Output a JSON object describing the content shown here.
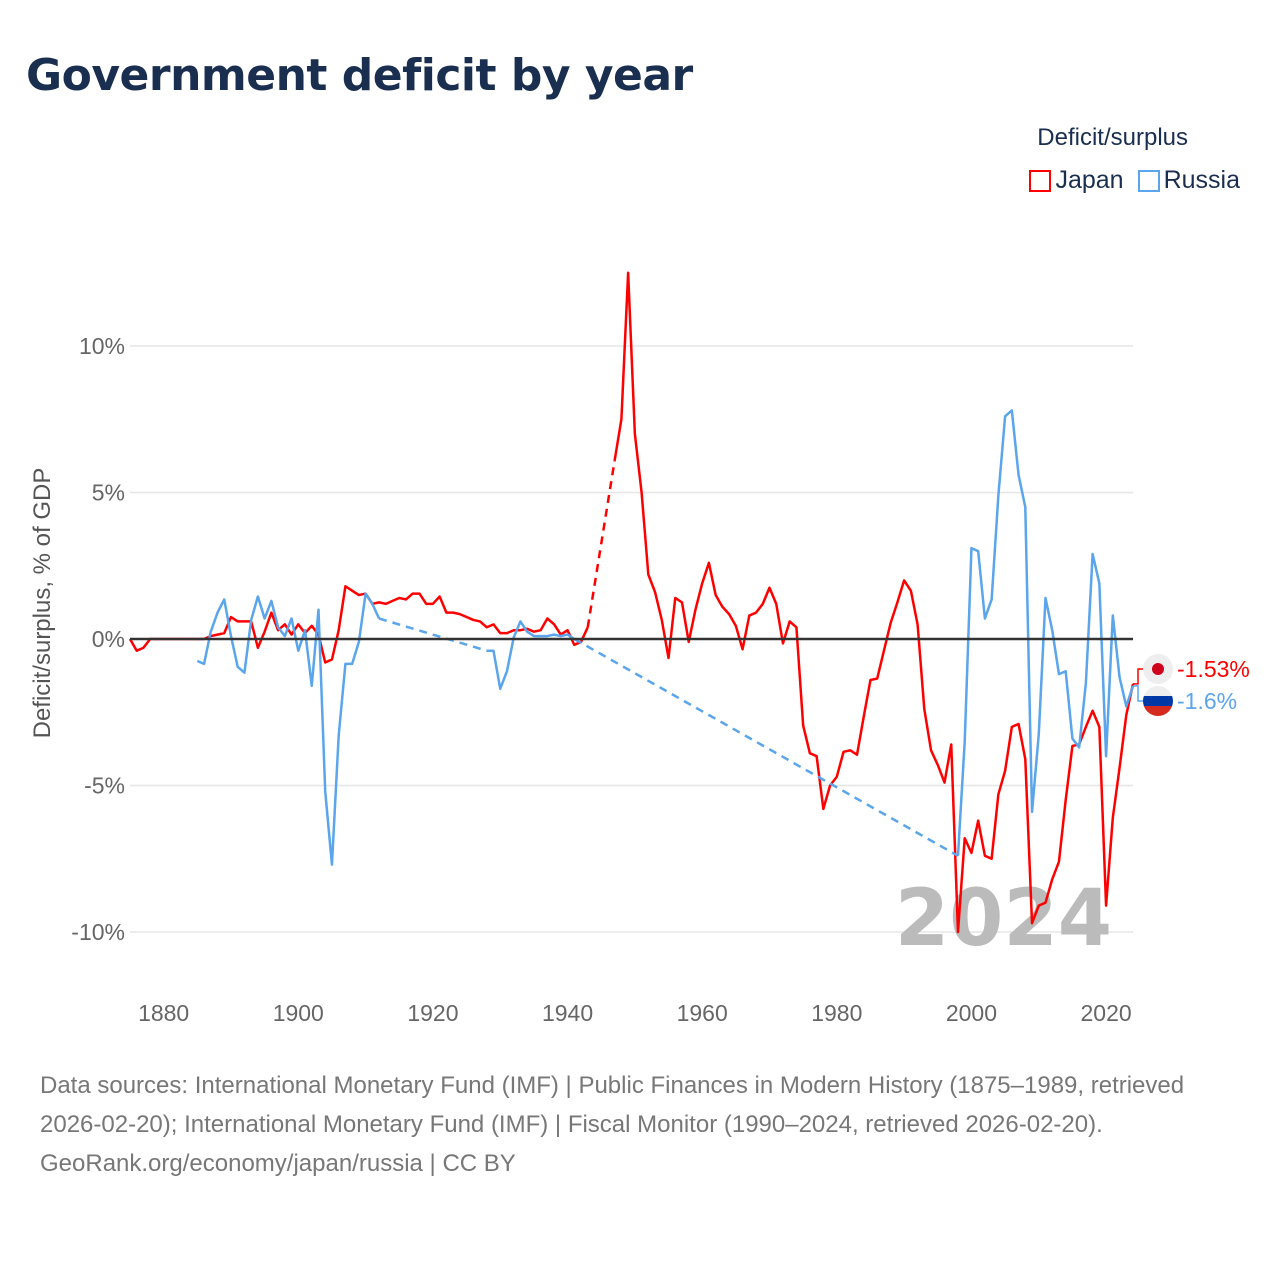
{
  "title": "Government deficit by year",
  "legend": {
    "title": "Deficit/surplus",
    "items": [
      {
        "label": "Japan",
        "color": "#ff0000"
      },
      {
        "label": "Russia",
        "color": "#5aa5eb"
      }
    ]
  },
  "footer": {
    "sources": "Data sources: International Monetary Fund (IMF) | Public Finances in Modern History (1875–1989, retrieved 2026-02-20); International Monetary Fund (IMF) | Fiscal Monitor (1990–2024, retrieved 2026-02-20).",
    "credit": "GeoRank.org/economy/japan/russia | CC BY"
  },
  "chart_data": {
    "type": "line",
    "title": "Government deficit by year",
    "xlabel": "",
    "ylabel": "Deficit/surplus, % of GDP",
    "xlim": [
      1875,
      2024
    ],
    "ylim": [
      -12,
      14
    ],
    "xticks": [
      {
        "v": 1880,
        "label": "1880"
      },
      {
        "v": 1900,
        "label": "1900"
      },
      {
        "v": 1920,
        "label": "1920"
      },
      {
        "v": 1940,
        "label": "1940"
      },
      {
        "v": 1960,
        "label": "1960"
      },
      {
        "v": 1980,
        "label": "1980"
      },
      {
        "v": 2000,
        "label": "2000"
      },
      {
        "v": 2020,
        "label": "2020"
      }
    ],
    "yticks": [
      {
        "v": 10,
        "label": "10%"
      },
      {
        "v": 5,
        "label": "5%"
      },
      {
        "v": 0,
        "label": "0%"
      },
      {
        "v": -5,
        "label": "-5%"
      },
      {
        "v": -10,
        "label": "-10%"
      }
    ],
    "current_year": "2024",
    "series": [
      {
        "name": "Japan",
        "color": "#ff0000",
        "end_label": "-1.53%",
        "x": [
          1875,
          1876,
          1877,
          1878,
          1879,
          1880,
          1881,
          1882,
          1883,
          1884,
          1885,
          1886,
          1887,
          1888,
          1889,
          1890,
          1891,
          1892,
          1893,
          1894,
          1895,
          1896,
          1897,
          1898,
          1899,
          1900,
          1901,
          1902,
          1903,
          1904,
          1905,
          1906,
          1907,
          1908,
          1909,
          1910,
          1911,
          1912,
          1913,
          1914,
          1915,
          1916,
          1917,
          1918,
          1919,
          1920,
          1921,
          1922,
          1923,
          1924,
          1925,
          1926,
          1927,
          1928,
          1929,
          1930,
          1931,
          1932,
          1933,
          1934,
          1935,
          1936,
          1937,
          1938,
          1939,
          1940,
          1941,
          1942,
          1943,
          1947,
          1948,
          1949,
          1950,
          1951,
          1952,
          1953,
          1954,
          1955,
          1956,
          1957,
          1958,
          1959,
          1960,
          1961,
          1962,
          1963,
          1964,
          1965,
          1966,
          1967,
          1968,
          1969,
          1970,
          1971,
          1972,
          1973,
          1974,
          1975,
          1976,
          1977,
          1978,
          1979,
          1980,
          1981,
          1982,
          1983,
          1984,
          1985,
          1986,
          1987,
          1988,
          1989,
          1990,
          1991,
          1992,
          1993,
          1994,
          1995,
          1996,
          1997,
          1998,
          1999,
          2000,
          2001,
          2002,
          2003,
          2004,
          2005,
          2006,
          2007,
          2008,
          2009,
          2010,
          2011,
          2012,
          2013,
          2014,
          2015,
          2016,
          2017,
          2018,
          2019,
          2020,
          2021,
          2022,
          2023,
          2024
        ],
        "y": [
          0,
          -0.4,
          -0.3,
          0,
          0,
          0,
          0,
          0,
          0,
          0,
          0,
          0,
          0.1,
          0.15,
          0.2,
          0.75,
          0.6,
          0.6,
          0.6,
          -0.3,
          0.25,
          0.9,
          0.3,
          0.5,
          0.15,
          0.5,
          0.2,
          0.45,
          0.15,
          -0.8,
          -0.7,
          0.3,
          1.8,
          1.65,
          1.5,
          1.55,
          1.2,
          1.25,
          1.2,
          1.3,
          1.4,
          1.35,
          1.55,
          1.55,
          1.2,
          1.2,
          1.45,
          0.9,
          0.9,
          0.85,
          0.75,
          0.65,
          0.6,
          0.4,
          0.5,
          0.2,
          0.2,
          0.3,
          0.3,
          0.35,
          0.25,
          0.3,
          0.7,
          0.5,
          0.15,
          0.3,
          -0.2,
          -0.1,
          0.4,
          6.1,
          7.5,
          12.5,
          7.0,
          5.0,
          2.2,
          1.6,
          0.65,
          -0.65,
          1.4,
          1.25,
          -0.1,
          1.0,
          1.9,
          2.6,
          1.5,
          1.1,
          0.85,
          0.45,
          -0.35,
          0.8,
          0.9,
          1.2,
          1.75,
          1.2,
          -0.15,
          0.6,
          0.4,
          -2.95,
          -3.9,
          -4.0,
          -5.8,
          -5.0,
          -4.7,
          -3.85,
          -3.8,
          -3.95,
          -2.65,
          -1.4,
          -1.35,
          -0.4,
          0.55,
          1.25,
          2.0,
          1.65,
          0.5,
          -2.4,
          -3.8,
          -4.3,
          -4.9,
          -3.6,
          -10.0,
          -6.8,
          -7.3,
          -6.2,
          -7.4,
          -7.5,
          -5.3,
          -4.5,
          -3.0,
          -2.9,
          -4.1,
          -9.7,
          -9.1,
          -9.0,
          -8.2,
          -7.6,
          -5.5,
          -3.65,
          -3.6,
          -3.0,
          -2.45,
          -3.0,
          -9.1,
          -6.1,
          -4.4,
          -2.6,
          -1.53
        ]
      },
      {
        "name": "Russia",
        "color": "#5aa5eb",
        "end_label": "-1.6%",
        "x": [
          1885,
          1886,
          1887,
          1888,
          1889,
          1890,
          1891,
          1892,
          1893,
          1894,
          1895,
          1896,
          1897,
          1898,
          1899,
          1900,
          1901,
          1902,
          1903,
          1904,
          1905,
          1906,
          1907,
          1908,
          1909,
          1910,
          1911,
          1912,
          1928,
          1929,
          1930,
          1931,
          1932,
          1933,
          1934,
          1935,
          1936,
          1937,
          1938,
          1939,
          1940,
          1941,
          1998,
          1999,
          2000,
          2001,
          2002,
          2003,
          2004,
          2005,
          2006,
          2007,
          2008,
          2009,
          2010,
          2011,
          2012,
          2013,
          2014,
          2015,
          2016,
          2017,
          2018,
          2019,
          2020,
          2021,
          2022,
          2023,
          2024
        ],
        "y": [
          -0.75,
          -0.85,
          0.25,
          0.9,
          1.35,
          0.1,
          -0.95,
          -1.15,
          0.65,
          1.45,
          0.7,
          1.3,
          0.4,
          0.1,
          0.7,
          -0.4,
          0.3,
          -1.6,
          1.0,
          -5.2,
          -7.7,
          -3.3,
          -0.85,
          -0.85,
          -0.1,
          1.55,
          1.2,
          0.7,
          -0.4,
          -0.4,
          -1.7,
          -1.1,
          0.05,
          0.6,
          0.25,
          0.1,
          0.1,
          0.1,
          0.15,
          0.1,
          0.15,
          0,
          -7.4,
          -3.5,
          3.1,
          3.0,
          0.7,
          1.35,
          4.9,
          7.6,
          7.8,
          5.6,
          4.5,
          -5.9,
          -3.25,
          1.4,
          0.3,
          -1.2,
          -1.1,
          -3.4,
          -3.7,
          -1.5,
          2.9,
          1.9,
          -4.0,
          0.8,
          -1.3,
          -2.3,
          -1.6
        ]
      }
    ]
  }
}
